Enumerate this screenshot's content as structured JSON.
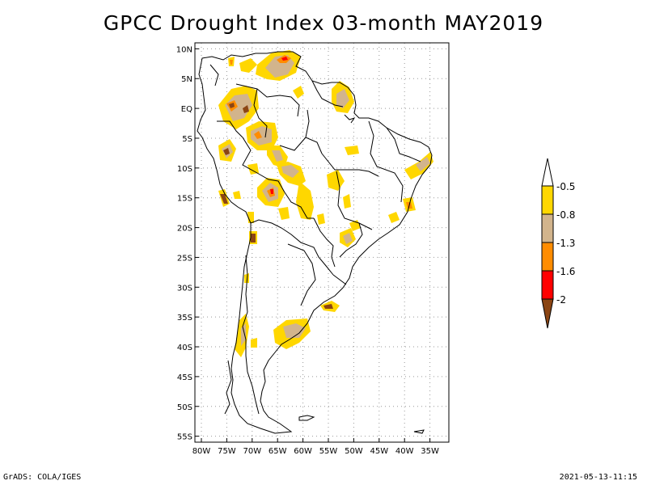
{
  "title": "GPCC Drought Index 03-month MAY2019",
  "footer": {
    "left": "GrADS: COLA/IGES",
    "right": "2021-05-13-11:15"
  },
  "map": {
    "lon_range": [
      -80,
      -30
    ],
    "lat_range": [
      -56,
      11
    ],
    "lat_ticks": [
      {
        "value": 10,
        "label": "10N"
      },
      {
        "value": 5,
        "label": "5N"
      },
      {
        "value": 0,
        "label": "EQ"
      },
      {
        "value": -5,
        "label": "5S"
      },
      {
        "value": -10,
        "label": "10S"
      },
      {
        "value": -15,
        "label": "15S"
      },
      {
        "value": -20,
        "label": "20S"
      },
      {
        "value": -25,
        "label": "25S"
      },
      {
        "value": -30,
        "label": "30S"
      },
      {
        "value": -35,
        "label": "35S"
      },
      {
        "value": -40,
        "label": "40S"
      },
      {
        "value": -45,
        "label": "45S"
      },
      {
        "value": -50,
        "label": "50S"
      },
      {
        "value": -55,
        "label": "55S"
      }
    ],
    "lon_ticks": [
      {
        "value": -80,
        "label": "80W"
      },
      {
        "value": -75,
        "label": "75W"
      },
      {
        "value": -70,
        "label": "70W"
      },
      {
        "value": -65,
        "label": "65W"
      },
      {
        "value": -60,
        "label": "60W"
      },
      {
        "value": -55,
        "label": "55W"
      },
      {
        "value": -50,
        "label": "50W"
      },
      {
        "value": -45,
        "label": "45W"
      },
      {
        "value": -40,
        "label": "40W"
      },
      {
        "value": -35,
        "label": "35W"
      }
    ]
  },
  "legend": {
    "levels": [
      {
        "label": "-0.5",
        "color": "#ffd700"
      },
      {
        "label": "-0.8",
        "color": "#d2b48c"
      },
      {
        "label": "-1.3",
        "color": "#ff8c00"
      },
      {
        "label": "-1.6",
        "color": "#ff0000"
      },
      {
        "label": "-2",
        "color": "#8b4513"
      }
    ],
    "top_color": "#ffffff",
    "bottom_color": "#8b4513"
  },
  "colors": {
    "yellow": "#ffd700",
    "tan": "#d2b48c",
    "orange": "#ff8c00",
    "red": "#ff0000",
    "brown": "#8b4513"
  }
}
